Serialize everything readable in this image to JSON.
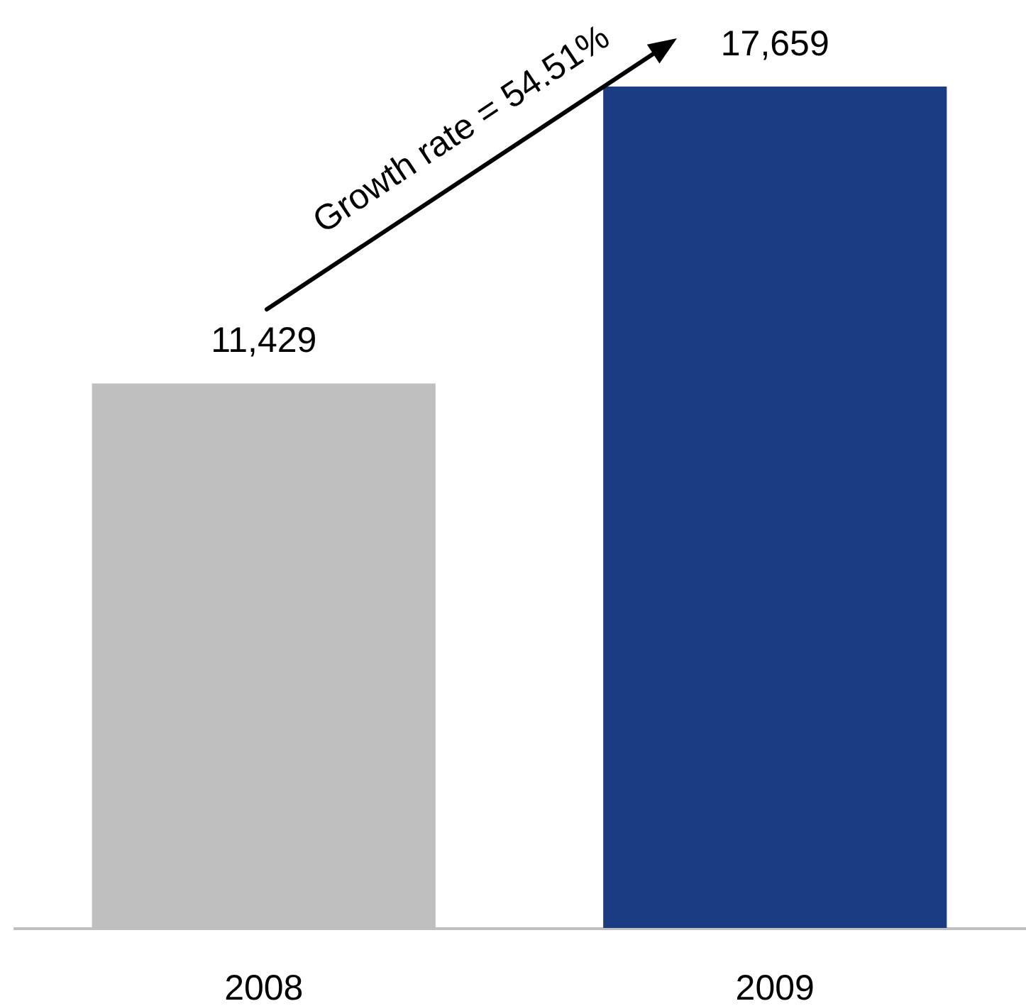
{
  "chart_data": {
    "type": "bar",
    "categories": [
      "2008",
      "2009"
    ],
    "values": [
      11429,
      17659
    ],
    "value_labels": [
      "11,429",
      "17,659"
    ],
    "colors": [
      "#bfbfbf",
      "#1a3c82"
    ],
    "tick_labels": "x",
    "annotations": [
      "Growth rate = 54.51%"
    ]
  }
}
